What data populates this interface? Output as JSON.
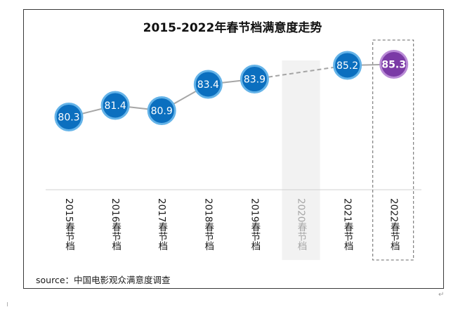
{
  "chart_data": {
    "type": "line",
    "title": "2015-2022年春节档满意度走势",
    "categories": [
      "2015春节档",
      "2016春节档",
      "2017春节档",
      "2018春节档",
      "2019春节档",
      "2020春节档",
      "2021春节档",
      "2022春节档"
    ],
    "values": [
      80.3,
      81.4,
      80.9,
      83.4,
      83.9,
      null,
      85.2,
      85.3
    ],
    "value_labels": [
      "80.3",
      "81.4",
      "80.9",
      "83.4",
      "83.9",
      "",
      "85.2",
      "85.3"
    ],
    "highlight_category": "2022春节档",
    "missing_category": "2020春节档",
    "grid": false,
    "legend": "none",
    "ylim": [
      79,
      86.2
    ],
    "colors": {
      "marker": "#0b6fbf",
      "marker_ring": "#64b3e8",
      "highlight_marker": "#7b3aa6",
      "highlight_ring": "#b98bd6",
      "line": "#a6a6a6",
      "missing_band": "#f2f2f2"
    }
  },
  "source": "source：中国电影观众满意度调查",
  "decor": {
    "return_mark": "↵"
  }
}
